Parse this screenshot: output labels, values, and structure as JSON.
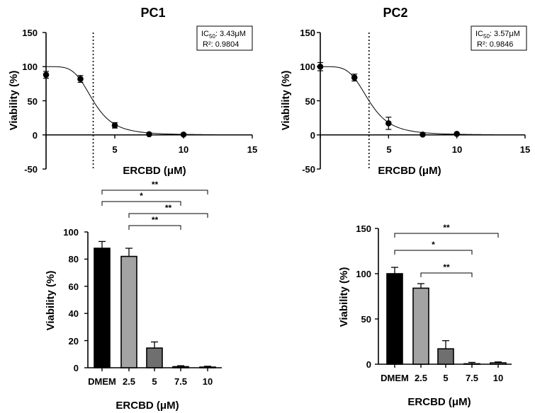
{
  "chart_data": [
    {
      "id": "pc1_curve",
      "type": "scatter",
      "title": "PC1",
      "xlabel": "ERCBD (μM)",
      "ylabel": "Viability (%)",
      "xlim": [
        0,
        15
      ],
      "ylim": [
        -50,
        150
      ],
      "xticks": [
        "5",
        "10",
        "15"
      ],
      "yticks": [
        "150",
        "100",
        "50",
        "0",
        "-50"
      ],
      "points": [
        {
          "x": 0,
          "y": 88,
          "err": 5
        },
        {
          "x": 2.5,
          "y": 82,
          "err": 5
        },
        {
          "x": 5,
          "y": 14,
          "err": 4
        },
        {
          "x": 7.5,
          "y": 1,
          "err": 1
        },
        {
          "x": 10,
          "y": 0.5,
          "err": 0.5
        }
      ],
      "fit": {
        "top": 100,
        "bottom": 0,
        "ic50": 3.43,
        "hill": 4.5
      },
      "vline_x": 3.43,
      "stats": {
        "ic50_label": "IC",
        "ic50_sub": "50",
        "ic50_value": ": 3.43μM",
        "r2_text": "R²: 0.9804"
      }
    },
    {
      "id": "pc2_curve",
      "type": "scatter",
      "title": "PC2",
      "xlabel": "ERCBD (μM)",
      "ylabel": "Viability (%)",
      "xlim": [
        0,
        15
      ],
      "ylim": [
        -50,
        150
      ],
      "xticks": [
        "5",
        "10",
        "15"
      ],
      "yticks": [
        "150",
        "100",
        "50",
        "0",
        "-50"
      ],
      "points": [
        {
          "x": 0,
          "y": 100,
          "err": 6
        },
        {
          "x": 2.5,
          "y": 84,
          "err": 5
        },
        {
          "x": 5,
          "y": 17,
          "err": 9
        },
        {
          "x": 7.5,
          "y": 0.5,
          "err": 1
        },
        {
          "x": 10,
          "y": 1.5,
          "err": 1
        }
      ],
      "fit": {
        "top": 100,
        "bottom": 0,
        "ic50": 3.57,
        "hill": 4.5
      },
      "vline_x": 3.57,
      "stats": {
        "ic50_label": "IC",
        "ic50_sub": "50",
        "ic50_value": ": 3.57μM",
        "r2_text": "R²: 0.9846"
      }
    },
    {
      "id": "pc1_bar",
      "type": "bar",
      "xlabel": "ERCBD (μM)",
      "ylabel": "Viability (%)",
      "ylim": [
        0,
        100
      ],
      "yticks": [
        "100",
        "80",
        "60",
        "40",
        "20",
        "0"
      ],
      "categories": [
        "DMEM",
        "2.5",
        "5",
        "7.5",
        "10"
      ],
      "values": [
        88,
        82,
        14.5,
        0.8,
        0.5
      ],
      "errors": [
        5,
        6,
        4.5,
        0.7,
        0.6
      ],
      "colors": [
        "#000000",
        "#a3a3a3",
        "#6f6f6f",
        "#ffffff",
        "#ffffff"
      ],
      "significance": [
        {
          "from": 0,
          "to": 4,
          "label": "**"
        },
        {
          "from": 0,
          "to": 3,
          "label": "*"
        },
        {
          "from": 1,
          "to": 4,
          "label": "**"
        },
        {
          "from": 1,
          "to": 3,
          "label": "**"
        }
      ]
    },
    {
      "id": "pc2_bar",
      "type": "bar",
      "xlabel": "ERCBD (μM)",
      "ylabel": "Viability (%)",
      "ylim": [
        0,
        150
      ],
      "yticks": [
        "150",
        "100",
        "50",
        "0"
      ],
      "categories": [
        "DMEM",
        "2.5",
        "5",
        "7.5",
        "10"
      ],
      "values": [
        100,
        84,
        17,
        0.5,
        1.5
      ],
      "errors": [
        7,
        5,
        9,
        1.5,
        1
      ],
      "colors": [
        "#000000",
        "#a3a3a3",
        "#6f6f6f",
        "#ffffff",
        "#ffffff"
      ],
      "significance": [
        {
          "from": 0,
          "to": 4,
          "label": "**"
        },
        {
          "from": 0,
          "to": 3,
          "label": "*"
        },
        {
          "from": 1,
          "to": 3,
          "label": "**"
        }
      ]
    }
  ]
}
